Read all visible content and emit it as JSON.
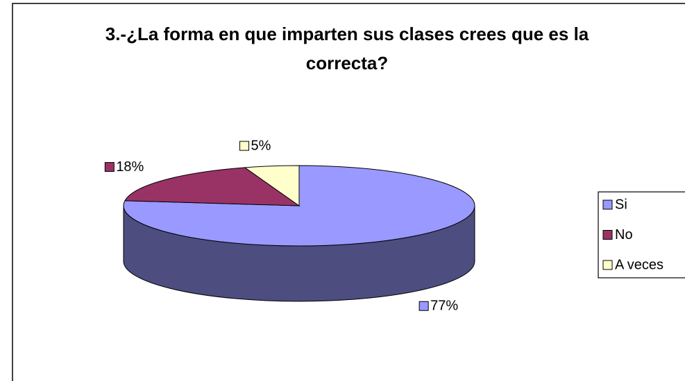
{
  "chart_data": {
    "type": "pie",
    "title": "3.-¿La forma en que imparten sus clases crees que es la correcta?",
    "categories": [
      "Si",
      "No",
      "A veces"
    ],
    "values": [
      77,
      18,
      5
    ],
    "value_labels": [
      "77%",
      "18%",
      "5%"
    ],
    "colors": [
      "#9999ff",
      "#993366",
      "#ffffcc"
    ],
    "legend": "right"
  }
}
